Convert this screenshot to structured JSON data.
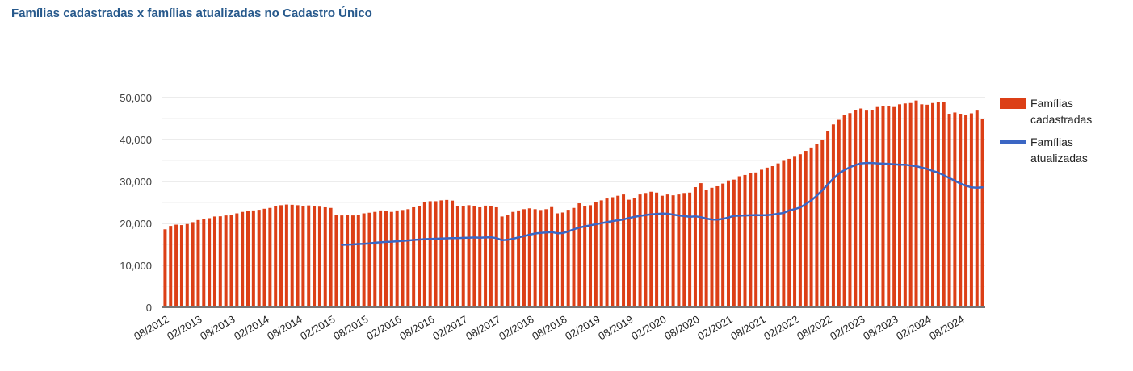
{
  "title": "Famílias cadastradas x famílias atualizadas no Cadastro Único",
  "legend": {
    "position": "right",
    "items": [
      {
        "label": "Famílias cadastradas",
        "type": "bar",
        "color": "#dc3f16"
      },
      {
        "label": "Famílias atualizadas",
        "type": "line",
        "color": "#3b66c4"
      }
    ]
  },
  "chart_data": {
    "type": "combo-bar-line",
    "x_unit": "month",
    "x_start": "08/2012",
    "x_end": "12/2024",
    "n_bars": 149,
    "label_every_n_bars": 6,
    "x_tick_labels": [
      "08/2012",
      "02/2013",
      "08/2013",
      "02/2014",
      "08/2014",
      "02/2015",
      "08/2015",
      "02/2016",
      "08/2016",
      "02/2017",
      "08/2017",
      "02/2018",
      "08/2018",
      "02/2019",
      "08/2019",
      "02/2020",
      "08/2020",
      "02/2021",
      "08/2021",
      "02/2022",
      "08/2022",
      "02/2023",
      "08/2023",
      "02/2024",
      "08/2024"
    ],
    "ylim": [
      0,
      50000
    ],
    "grid_interval": 5000,
    "y_ticks": [
      {
        "v": 0,
        "label": "0"
      },
      {
        "v": 10000,
        "label": "10,000"
      },
      {
        "v": 20000,
        "label": "20,000"
      },
      {
        "v": 30000,
        "label": "30,000"
      },
      {
        "v": 40000,
        "label": "40,000"
      },
      {
        "v": 50000,
        "label": "50,000"
      }
    ],
    "series": [
      {
        "name": "Famílias cadastradas",
        "type": "bar",
        "color": "#dc3f16",
        "start_index": 0,
        "values": [
          18600,
          19400,
          19700,
          19600,
          19850,
          20300,
          20800,
          21100,
          21250,
          21650,
          21700,
          21900,
          22100,
          22400,
          22750,
          22900,
          23100,
          23250,
          23500,
          23700,
          24150,
          24350,
          24500,
          24450,
          24350,
          24200,
          24300,
          24050,
          24000,
          23850,
          23700,
          22100,
          21900,
          22100,
          21900,
          22100,
          22400,
          22550,
          22750,
          23100,
          22900,
          22750,
          23100,
          23200,
          23400,
          23850,
          24050,
          25000,
          25300,
          25300,
          25500,
          25600,
          25450,
          24050,
          24150,
          24350,
          24050,
          23850,
          24250,
          24050,
          23850,
          21650,
          22100,
          22750,
          23100,
          23400,
          23600,
          23400,
          23200,
          23400,
          23900,
          22400,
          22600,
          23250,
          23700,
          24800,
          24050,
          24350,
          25000,
          25500,
          25950,
          26250,
          26600,
          26900,
          25650,
          26100,
          26900,
          27250,
          27550,
          27350,
          26600,
          26900,
          26700,
          26900,
          27250,
          27350,
          28650,
          29600,
          27900,
          28500,
          28850,
          29500,
          30250,
          30450,
          31250,
          31550,
          32000,
          32150,
          32800,
          33300,
          33650,
          34300,
          34900,
          35400,
          35900,
          36500,
          37300,
          38100,
          38900,
          40000,
          42000,
          43600,
          44700,
          45800,
          46300,
          47100,
          47400,
          46900,
          47100,
          47750,
          47950,
          48050,
          47750,
          48400,
          48600,
          48700,
          49300,
          48400,
          48300,
          48700,
          49000,
          48850,
          46150,
          46450,
          46150,
          45800,
          46250,
          46900,
          44850
        ]
      },
      {
        "name": "Famílias atualizadas",
        "type": "line",
        "color": "#3b66c4",
        "start_index": 32,
        "values": [
          14900,
          14950,
          15000,
          15100,
          15150,
          15250,
          15400,
          15500,
          15600,
          15650,
          15750,
          15850,
          15950,
          16050,
          16150,
          16250,
          16300,
          16350,
          16400,
          16450,
          16500,
          16500,
          16550,
          16600,
          16650,
          16600,
          16650,
          16700,
          16500,
          16000,
          16100,
          16350,
          16650,
          17000,
          17300,
          17600,
          17750,
          17850,
          17950,
          17650,
          17700,
          18100,
          18600,
          19000,
          19300,
          19550,
          19800,
          20050,
          20300,
          20550,
          20750,
          20950,
          21300,
          21550,
          21800,
          22000,
          22150,
          22250,
          22350,
          22300,
          22100,
          21900,
          21750,
          21600,
          21700,
          21500,
          21150,
          20950,
          20900,
          21100,
          21400,
          21800,
          21850,
          21900,
          21950,
          22000,
          21950,
          22000,
          22100,
          22300,
          22500,
          23100,
          23400,
          23800,
          24600,
          25500,
          26600,
          27900,
          29300,
          30700,
          31900,
          32700,
          33400,
          33900,
          34300,
          34400,
          34400,
          34300,
          34250,
          34200,
          34100,
          34000,
          34000,
          33800,
          33650,
          33300,
          33000,
          32500,
          32100,
          31500,
          30800,
          30200,
          29500,
          29000,
          28600,
          28500,
          28600
        ]
      }
    ],
    "colors": {
      "bar": "#dc3f16",
      "line": "#3b66c4",
      "title": "#27598c",
      "axis_text": "#404040",
      "gridline_major": "#d9d9d9",
      "gridline_minor": "#ececec",
      "baseline": "#757575",
      "background": "#ffffff"
    }
  }
}
